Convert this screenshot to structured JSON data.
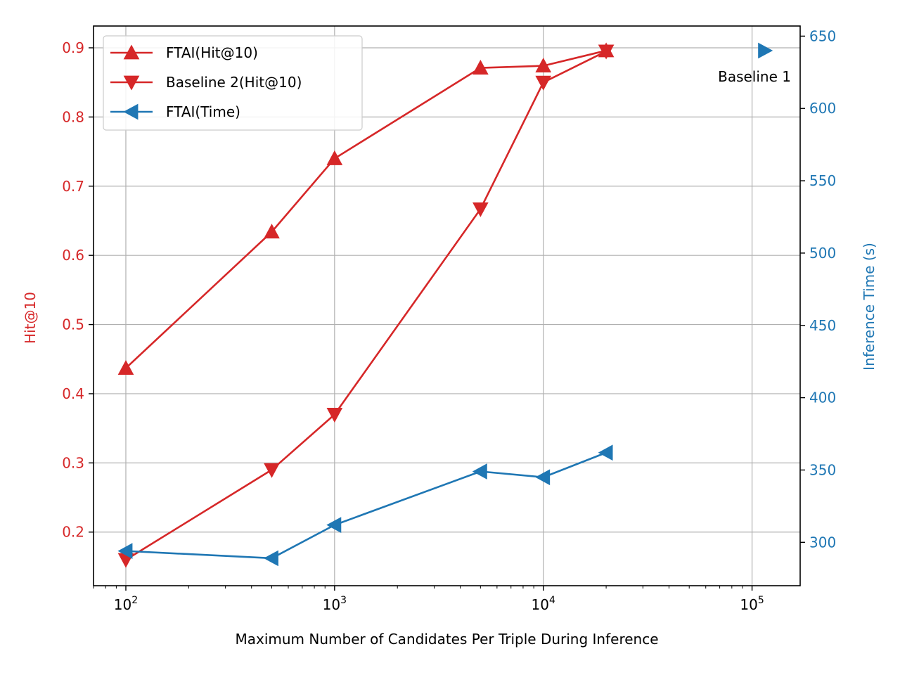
{
  "chart_data": {
    "type": "line",
    "xlabel": "Maximum Number of Candidates Per Triple During Inference",
    "xscale": "log",
    "xlim": [
      70,
      170000
    ],
    "x_ticks": [
      {
        "value": 100,
        "base": "10",
        "exp": "2"
      },
      {
        "value": 1000,
        "base": "10",
        "exp": "3"
      },
      {
        "value": 10000,
        "base": "10",
        "exp": "4"
      },
      {
        "value": 100000,
        "base": "10",
        "exp": "5"
      }
    ],
    "left_axis": {
      "label": "Hit@10",
      "color": "#d62728",
      "ylim": [
        0.1225,
        0.9315
      ],
      "ticks": [
        "0.2",
        "0.3",
        "0.4",
        "0.5",
        "0.6",
        "0.7",
        "0.8",
        "0.9"
      ]
    },
    "right_axis": {
      "label": "Inference Time (s)",
      "color": "#1f77b4",
      "ylim": [
        270,
        657
      ],
      "ticks": [
        "300",
        "350",
        "400",
        "450",
        "500",
        "550",
        "600",
        "650"
      ]
    },
    "grid": true,
    "legend_position": "upper-left",
    "series": [
      {
        "name": "FTAI(Hit@10)",
        "axis": "left",
        "color": "#d62728",
        "marker": "triangle-up",
        "x": [
          100,
          500,
          1000,
          5000,
          10000,
          20000
        ],
        "y": [
          0.437,
          0.634,
          0.74,
          0.871,
          0.874,
          0.896
        ]
      },
      {
        "name": "Baseline 2(Hit@10)",
        "axis": "left",
        "color": "#d62728",
        "marker": "triangle-down",
        "x": [
          100,
          500,
          1000,
          5000,
          10000,
          20000
        ],
        "y": [
          0.16,
          0.29,
          0.37,
          0.667,
          0.85,
          0.895
        ]
      },
      {
        "name": "FTAI(Time)",
        "axis": "right",
        "color": "#1f77b4",
        "marker": "triangle-left",
        "x": [
          100,
          500,
          1000,
          5000,
          10000,
          20000
        ],
        "y": [
          294,
          289,
          312,
          349,
          345,
          362
        ]
      }
    ],
    "annotations": [
      {
        "text": "Baseline 1",
        "axis": "right",
        "color": "#1f77b4",
        "marker": "triangle-right",
        "x": 115000,
        "y": 640
      }
    ]
  }
}
